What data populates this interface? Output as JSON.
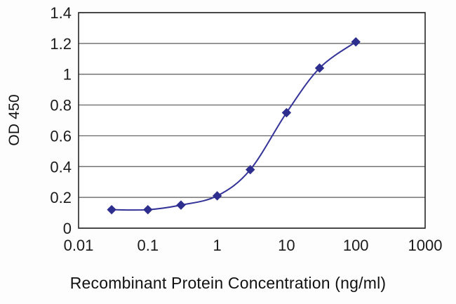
{
  "chart_data": {
    "type": "line",
    "title": "",
    "xlabel": "Recombinant Protein Concentration (ng/ml)",
    "ylabel": "OD 450",
    "x": [
      0.03,
      0.1,
      0.3,
      1,
      3,
      10,
      30,
      100
    ],
    "y": [
      0.12,
      0.12,
      0.15,
      0.21,
      0.38,
      0.75,
      1.04,
      1.21
    ],
    "xscale": "log",
    "xlim": [
      0.01,
      1000
    ],
    "ylim": [
      0,
      1.4
    ],
    "xticks": [
      0.01,
      0.1,
      1,
      10,
      100,
      1000
    ],
    "xtick_labels": [
      "0.01",
      "0.1",
      "1",
      "10",
      "100",
      "1000"
    ],
    "yticks": [
      0,
      0.2,
      0.4,
      0.6,
      0.8,
      1,
      1.2,
      1.4
    ],
    "ytick_labels": [
      "0",
      "0.2",
      "0.4",
      "0.6",
      "0.8",
      "1",
      "1.2",
      "1.4"
    ],
    "grid": "horizontal",
    "legend": "none",
    "marker": "diamond",
    "line_color": "#333399",
    "marker_color": "#2e2e8f",
    "grid_color": "#595959",
    "border_color": "#262626",
    "text_color": "#1a1a1a",
    "plot_background": "#ffffff"
  }
}
